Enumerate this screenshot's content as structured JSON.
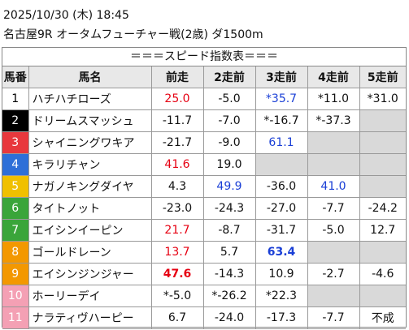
{
  "header": {
    "datetime": "2025/10/30 (木) 18:45",
    "race": "名古屋9R オータムフューチャー戦(2歳) ダ1500m"
  },
  "table": {
    "title": "＝＝＝スピード指数表＝＝＝",
    "columns": [
      "馬番",
      "馬名",
      "前走",
      "2走前",
      "3走前",
      "4走前",
      "5走前"
    ],
    "rows": [
      {
        "no": "1",
        "name": "ハチハチローズ",
        "frame_color": "#ffffff",
        "no_color": "#000000",
        "scores": [
          {
            "text": "25.0",
            "color": "#e60012"
          },
          "-5.0",
          {
            "text": "*35.7",
            "color": "#1a3fd6"
          },
          "*11.0",
          "*31.0"
        ]
      },
      {
        "no": "2",
        "name": "ドリームスマッシュ",
        "frame_color": "#000000",
        "no_color": "#ffffff",
        "scores": [
          "-11.7",
          "-7.0",
          "*-16.7",
          "*-37.3",
          null
        ]
      },
      {
        "no": "3",
        "name": "シャイニングワキア",
        "frame_color": "#e8383d",
        "no_color": "#ffffff",
        "scores": [
          "-21.7",
          "-9.0",
          {
            "text": "61.1",
            "color": "#1a3fd6"
          },
          null,
          null
        ]
      },
      {
        "no": "4",
        "name": "キラリチャン",
        "frame_color": "#2e6fd8",
        "no_color": "#ffffff",
        "scores": [
          {
            "text": "41.6",
            "color": "#e60012"
          },
          "19.0",
          null,
          null,
          null
        ]
      },
      {
        "no": "5",
        "name": "ナガノキングダイヤ",
        "frame_color": "#f0c000",
        "no_color": "#ffffff",
        "scores": [
          "4.3",
          {
            "text": "49.9",
            "color": "#1a3fd6"
          },
          "-36.0",
          {
            "text": "41.0",
            "color": "#1a3fd6"
          },
          null
        ]
      },
      {
        "no": "6",
        "name": "タイトノット",
        "frame_color": "#3aa53a",
        "no_color": "#ffffff",
        "scores": [
          "-23.0",
          "-24.3",
          "-27.0",
          "-7.7",
          "-24.2"
        ]
      },
      {
        "no": "7",
        "name": "エイシンイーピン",
        "frame_color": "#3aa53a",
        "no_color": "#ffffff",
        "scores": [
          {
            "text": "21.7",
            "color": "#e60012"
          },
          "-8.7",
          "-31.7",
          "-5.0",
          "12.7"
        ]
      },
      {
        "no": "8",
        "name": "ゴールドレーン",
        "frame_color": "#f39800",
        "no_color": "#ffffff",
        "scores": [
          {
            "text": "13.7",
            "color": "#e60012"
          },
          "5.7",
          {
            "text": "63.4",
            "color": "#1a3fd6",
            "bold": true
          },
          null,
          null
        ]
      },
      {
        "no": "9",
        "name": "エイシンジンジャー",
        "frame_color": "#f39800",
        "no_color": "#ffffff",
        "scores": [
          {
            "text": "47.6",
            "color": "#e60012",
            "bold": true
          },
          "-14.3",
          "10.9",
          "-2.7",
          "-4.6"
        ]
      },
      {
        "no": "10",
        "name": "ホーリーデイ",
        "frame_color": "#f4a0b4",
        "no_color": "#ffffff",
        "scores": [
          "*-5.0",
          "*-26.2",
          "*22.3",
          null,
          null
        ]
      },
      {
        "no": "11",
        "name": "ナラティヴハーピー",
        "frame_color": "#f4a0b4",
        "no_color": "#ffffff",
        "scores": [
          "6.7",
          "-24.0",
          "-17.3",
          "-7.7",
          "不成"
        ]
      }
    ]
  }
}
